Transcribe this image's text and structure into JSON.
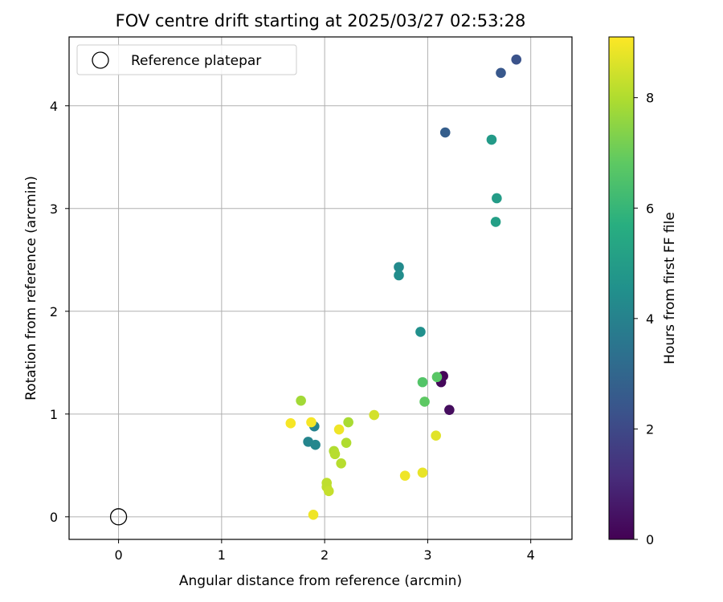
{
  "chart_data": {
    "type": "scatter",
    "title": "FOV centre drift starting at 2025/03/27 02:53:28",
    "xlabel": "Angular distance from reference (arcmin)",
    "ylabel": "Rotation from reference (arcmin)",
    "xlim": [
      -0.48,
      4.4
    ],
    "ylim": [
      -0.22,
      4.67
    ],
    "xticks": [
      "0",
      "1",
      "2",
      "3",
      "4"
    ],
    "yticks": [
      "0",
      "1",
      "2",
      "3",
      "4"
    ],
    "grid": true,
    "legend": {
      "placement": "top-left",
      "entries": [
        "Reference platepar"
      ]
    },
    "reference_point": {
      "x": 0,
      "y": 0
    },
    "colorbar": {
      "label": "Hours from first FF file",
      "range": [
        0,
        9.1
      ],
      "ticks": [
        "0",
        "2",
        "4",
        "6",
        "8"
      ],
      "colormap": "viridis"
    },
    "points": [
      {
        "x": 3.15,
        "y": 1.37,
        "c": 0.1
      },
      {
        "x": 3.13,
        "y": 1.31,
        "c": 0.2
      },
      {
        "x": 3.21,
        "y": 1.04,
        "c": 0.3
      },
      {
        "x": 3.86,
        "y": 4.45,
        "c": 2.3
      },
      {
        "x": 3.71,
        "y": 4.32,
        "c": 2.5
      },
      {
        "x": 3.17,
        "y": 3.74,
        "c": 2.7
      },
      {
        "x": 3.62,
        "y": 3.67,
        "c": 4.9
      },
      {
        "x": 3.67,
        "y": 3.1,
        "c": 5.0
      },
      {
        "x": 3.66,
        "y": 2.87,
        "c": 5.1
      },
      {
        "x": 2.72,
        "y": 2.43,
        "c": 4.3
      },
      {
        "x": 2.72,
        "y": 2.35,
        "c": 4.4
      },
      {
        "x": 2.93,
        "y": 1.8,
        "c": 4.5
      },
      {
        "x": 1.9,
        "y": 0.88,
        "c": 4.0
      },
      {
        "x": 1.84,
        "y": 0.73,
        "c": 4.1
      },
      {
        "x": 1.91,
        "y": 0.7,
        "c": 4.2
      },
      {
        "x": 2.95,
        "y": 1.31,
        "c": 6.6
      },
      {
        "x": 3.09,
        "y": 1.36,
        "c": 6.7
      },
      {
        "x": 2.97,
        "y": 1.12,
        "c": 6.8
      },
      {
        "x": 1.77,
        "y": 1.13,
        "c": 7.8
      },
      {
        "x": 2.23,
        "y": 0.92,
        "c": 7.9
      },
      {
        "x": 2.09,
        "y": 0.64,
        "c": 8.0
      },
      {
        "x": 2.1,
        "y": 0.61,
        "c": 8.1
      },
      {
        "x": 2.21,
        "y": 0.72,
        "c": 8.0
      },
      {
        "x": 2.16,
        "y": 0.52,
        "c": 8.1
      },
      {
        "x": 2.02,
        "y": 0.33,
        "c": 8.2
      },
      {
        "x": 2.02,
        "y": 0.29,
        "c": 8.2
      },
      {
        "x": 2.04,
        "y": 0.25,
        "c": 8.3
      },
      {
        "x": 2.48,
        "y": 0.99,
        "c": 8.5
      },
      {
        "x": 2.14,
        "y": 0.85,
        "c": 8.9
      },
      {
        "x": 1.67,
        "y": 0.91,
        "c": 9.0
      },
      {
        "x": 1.87,
        "y": 0.92,
        "c": 9.0
      },
      {
        "x": 3.08,
        "y": 0.79,
        "c": 8.7
      },
      {
        "x": 2.78,
        "y": 0.4,
        "c": 8.9
      },
      {
        "x": 2.95,
        "y": 0.43,
        "c": 8.8
      },
      {
        "x": 1.89,
        "y": 0.02,
        "c": 8.9
      }
    ]
  }
}
